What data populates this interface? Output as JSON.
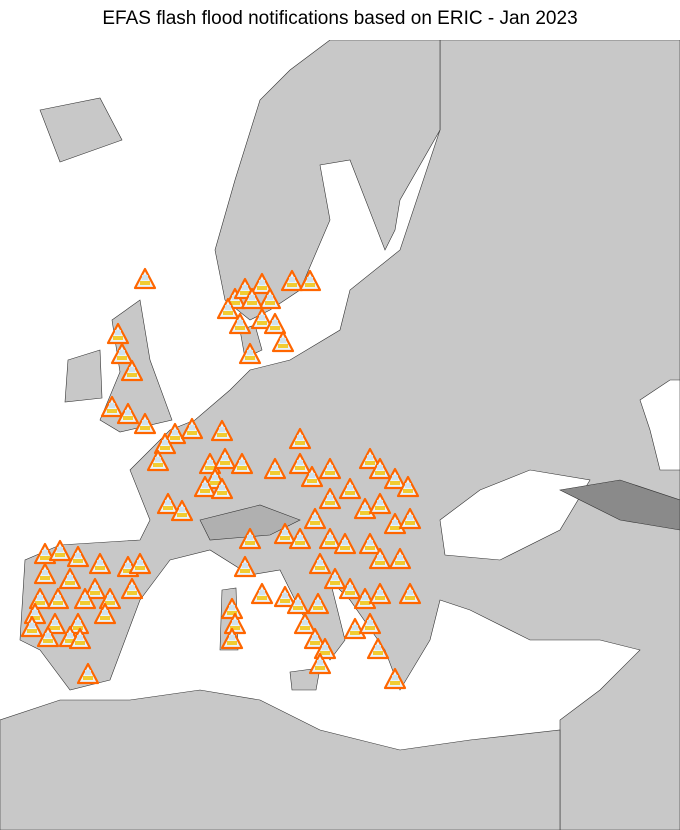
{
  "title": "EFAS flash flood notifications based on ERIC - Jan 2023",
  "map": {
    "marker_icon": "flash-flood-warning-triangle-icon",
    "colors": {
      "sea": "#ffffff",
      "land": "#c8c8c8",
      "land_dark": "#9a9a9a",
      "marker_border": "#ff6600",
      "marker_fill": "#e8f4fb",
      "rain": "#f2c200"
    }
  }
}
